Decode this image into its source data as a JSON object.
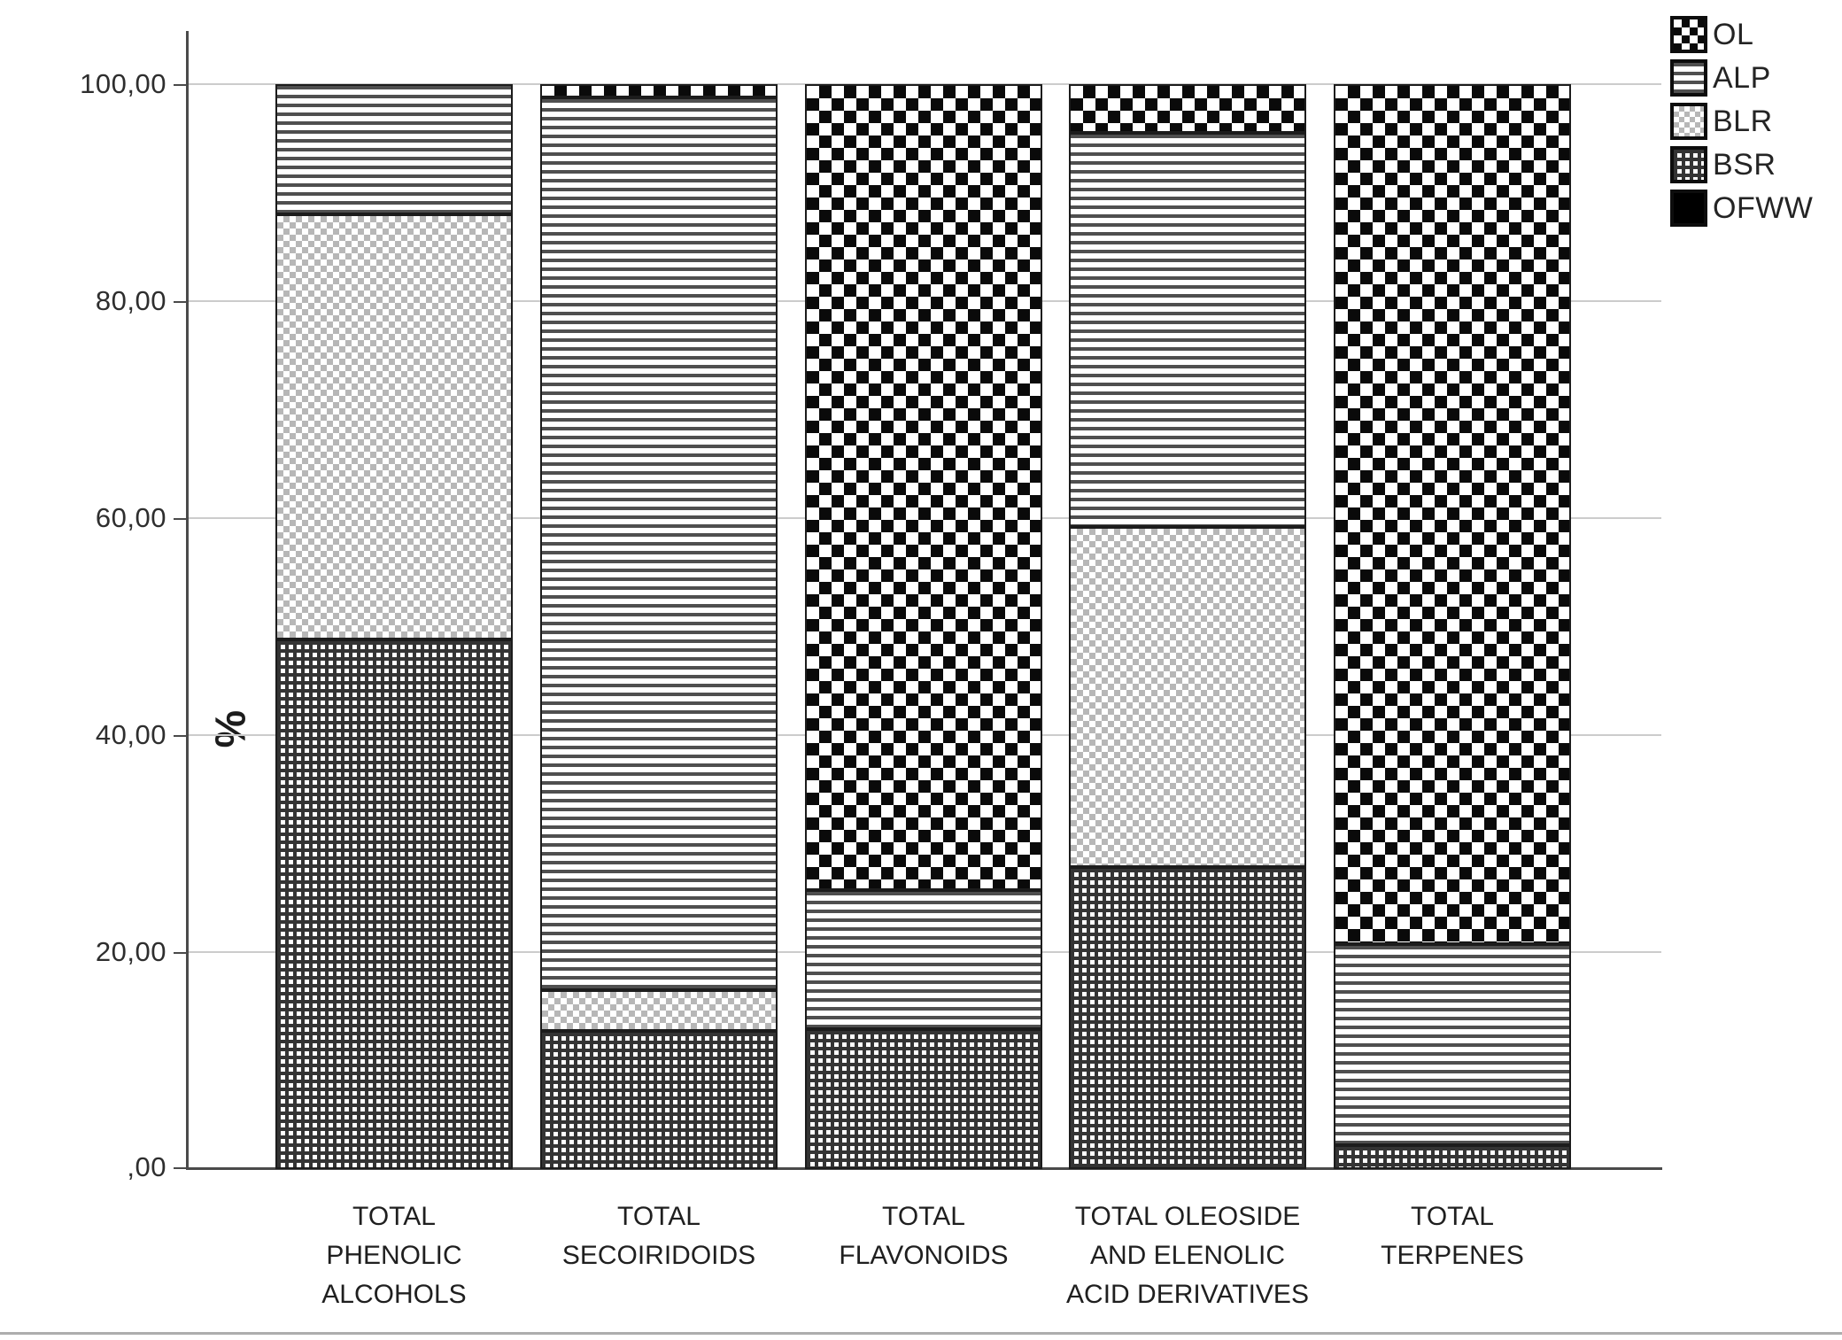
{
  "chart_data": {
    "type": "bar",
    "subtype": "stacked-100-percent",
    "title": "",
    "xlabel": "",
    "ylabel": "%",
    "ylim": [
      0,
      100
    ],
    "grid": "horizontal gridlines every 20%",
    "legend_position": "top-right",
    "yticks": [
      {
        "label": "100,00",
        "value": 100
      },
      {
        "label": "80,00",
        "value": 80
      },
      {
        "label": "60,00",
        "value": 60
      },
      {
        "label": "40,00",
        "value": 40
      },
      {
        "label": "20,00",
        "value": 20
      },
      {
        "label": ",00",
        "value": 0
      }
    ],
    "categories": [
      "TOTAL PHENOLIC ALCOHOLS",
      "TOTAL SECOIRIDOIDS",
      "TOTAL FLAVONOIDS",
      "TOTAL OLEOSIDE AND ELENOLIC ACID DERIVATIVES",
      "TOTAL TERPENES"
    ],
    "category_label_lines": [
      [
        "TOTAL",
        "PHENOLIC",
        "ALCOHOLS"
      ],
      [
        "TOTAL",
        "SECOIRIDOIDS"
      ],
      [
        "TOTAL",
        "FLAVONOIDS"
      ],
      [
        "TOTAL OLEOSIDE",
        "AND ELENOLIC",
        "ACID DERIVATIVES"
      ],
      [
        "TOTAL",
        "TERPENES"
      ]
    ],
    "series": [
      {
        "name": "OFWW",
        "pattern": "solid-black",
        "values": [
          0.0,
          0.0,
          0.0,
          0.0,
          0.0
        ]
      },
      {
        "name": "BSR",
        "pattern": "dense-grid",
        "values": [
          48.8,
          12.7,
          12.9,
          27.8,
          2.2
        ]
      },
      {
        "name": "BLR",
        "pattern": "light-dots",
        "values": [
          39.2,
          3.8,
          0.0,
          31.4,
          0.0
        ]
      },
      {
        "name": "ALP",
        "pattern": "horizontal-lines",
        "values": [
          12.0,
          82.3,
          12.8,
          36.3,
          18.5
        ]
      },
      {
        "name": "OL",
        "pattern": "checkerboard",
        "values": [
          0.0,
          1.2,
          74.3,
          4.5,
          79.3
        ]
      }
    ],
    "legend": [
      {
        "label": "OL",
        "pattern": "checkerboard"
      },
      {
        "label": "ALP",
        "pattern": "horizontal-lines"
      },
      {
        "label": "BLR",
        "pattern": "light-dots"
      },
      {
        "label": "BSR",
        "pattern": "dense-grid"
      },
      {
        "label": "OFWW",
        "pattern": "solid-black"
      }
    ]
  },
  "colors": {
    "background": "#ffffff",
    "axis": "#4a4a4a",
    "gridline": "#cccccc",
    "segment_border": "#1c1c1c",
    "pattern_ink": "#343434",
    "light_dot": "#b7b7b7",
    "text": "#2b2b2b"
  }
}
